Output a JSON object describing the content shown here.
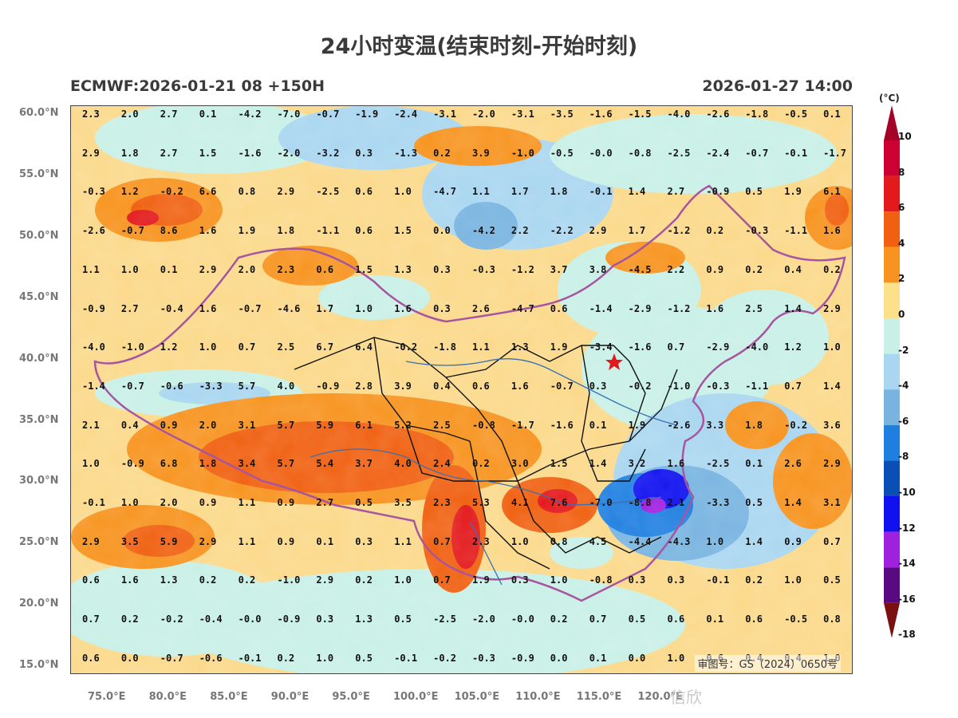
{
  "title": "24小时变温(结束时刻-开始时刻)",
  "subtitle_left": "ECMWF:2026-01-21 08 +150H",
  "subtitle_right": "2026-01-27 14:00",
  "approval_number": "审图号：GS（2024）0650号",
  "watermark": "信欣",
  "lat_labels": [
    "60.0°N",
    "55.0°N",
    "50.0°N",
    "45.0°N",
    "40.0°N",
    "35.0°N",
    "30.0°N",
    "25.0°N",
    "20.0°N",
    "15.0°N"
  ],
  "lon_labels": [
    "75.0°E",
    "80.0°E",
    "85.0°E",
    "90.0°E",
    "95.0°E",
    "100.0°E",
    "105.0°E",
    "110.0°E",
    "115.0°E",
    "120.0°E"
  ],
  "colorbar": {
    "unit": "(°C)",
    "ticks": [
      "10",
      "8",
      "6",
      "4",
      "2",
      "0",
      "-2",
      "-4",
      "-6",
      "-8",
      "-10",
      "-12",
      "-14",
      "-16",
      "-18"
    ],
    "colors": [
      "#a50026",
      "#cc0033",
      "#e31a1c",
      "#f06010",
      "#f7931e",
      "#fde08a",
      "#c8f0e6",
      "#a9d6f0",
      "#78b4e0",
      "#1f7fe0",
      "#0a4fb5",
      "#1010f0",
      "#a020e0",
      "#5a0a80",
      "#7a1010"
    ]
  },
  "grid_values": [
    [
      "2.3",
      "2.0",
      "2.7",
      "0.1",
      "-4.2",
      "-7.0",
      "-0.7",
      "-1.9",
      "-2.4",
      "-3.1",
      "-2.0",
      "-3.1",
      "-3.5",
      "-1.6",
      "-1.5",
      "-4.0",
      "-2.6",
      "-1.8",
      "-0.5",
      "0.1"
    ],
    [
      "2.9",
      "1.8",
      "2.7",
      "1.5",
      "-1.6",
      "-2.0",
      "-3.2",
      "0.3",
      "-1.3",
      "0.2",
      "3.9",
      "-1.0",
      "-0.5",
      "-0.0",
      "-0.8",
      "-2.5",
      "-2.4",
      "-0.7",
      "-0.1",
      "-1.7"
    ],
    [
      "-0.3",
      "1.2",
      "-0.2",
      "6.6",
      "0.8",
      "2.9",
      "-2.5",
      "0.6",
      "1.0",
      "-4.7",
      "1.1",
      "1.7",
      "1.8",
      "-0.1",
      "1.4",
      "2.7",
      "-0.9",
      "0.5",
      "1.9",
      "6.1"
    ],
    [
      "-2.6",
      "-0.7",
      "8.6",
      "1.6",
      "1.9",
      "1.8",
      "-1.1",
      "0.6",
      "1.5",
      "0.0",
      "-4.2",
      "2.2",
      "-2.2",
      "2.9",
      "1.7",
      "-1.2",
      "0.2",
      "-0.3",
      "-1.1",
      "1.6"
    ],
    [
      "1.1",
      "1.0",
      "0.1",
      "2.9",
      "2.0",
      "2.3",
      "0.6",
      "1.5",
      "1.3",
      "0.3",
      "-0.3",
      "-1.2",
      "3.7",
      "3.8",
      "-4.5",
      "2.2",
      "0.9",
      "0.2",
      "0.4",
      "0.2"
    ],
    [
      "-0.9",
      "2.7",
      "-0.4",
      "1.6",
      "-0.7",
      "-4.6",
      "1.7",
      "1.0",
      "1.6",
      "0.3",
      "2.6",
      "-4.7",
      "0.6",
      "-1.4",
      "-2.9",
      "-1.2",
      "1.6",
      "2.5",
      "1.4",
      "2.9"
    ],
    [
      "-4.0",
      "-1.0",
      "1.2",
      "1.0",
      "0.7",
      "2.5",
      "6.7",
      "6.4",
      "-0.2",
      "-1.8",
      "1.1",
      "1.3",
      "1.9",
      "-3.4",
      "-1.6",
      "0.7",
      "-2.9",
      "-4.0",
      "1.2",
      "1.0"
    ],
    [
      "-1.4",
      "-0.7",
      "-0.6",
      "-3.3",
      "5.7",
      "4.0",
      "-0.9",
      "2.8",
      "3.9",
      "0.4",
      "0.6",
      "1.6",
      "-0.7",
      "0.3",
      "-0.2",
      "-1.0",
      "-0.3",
      "-1.1",
      "0.7",
      "1.4"
    ],
    [
      "2.1",
      "0.4",
      "0.9",
      "2.0",
      "3.1",
      "5.7",
      "5.9",
      "6.1",
      "5.2",
      "2.5",
      "-0.8",
      "-1.7",
      "-1.6",
      "0.1",
      "1.9",
      "-2.6",
      "3.3",
      "1.8",
      "-0.2",
      "3.6"
    ],
    [
      "1.0",
      "-0.9",
      "6.8",
      "1.8",
      "3.4",
      "5.7",
      "5.4",
      "3.7",
      "4.0",
      "2.4",
      "0.2",
      "3.0",
      "1.5",
      "1.4",
      "3.2",
      "1.6",
      "-2.5",
      "0.1",
      "2.6",
      "2.9"
    ],
    [
      "-0.1",
      "1.0",
      "2.0",
      "0.9",
      "1.1",
      "0.9",
      "2.7",
      "0.5",
      "3.5",
      "2.3",
      "5.3",
      "4.1",
      "7.6",
      "-7.0",
      "-8.8",
      "2.1",
      "-3.3",
      "0.5",
      "1.4",
      "3.1"
    ],
    [
      "2.9",
      "3.5",
      "5.9",
      "2.9",
      "1.1",
      "0.9",
      "0.1",
      "0.3",
      "1.1",
      "0.7",
      "2.3",
      "1.0",
      "0.8",
      "4.5",
      "-4.4",
      "-4.3",
      "1.0",
      "1.4",
      "0.9",
      "0.7"
    ],
    [
      "0.6",
      "1.6",
      "1.3",
      "0.2",
      "0.2",
      "-1.0",
      "2.9",
      "0.2",
      "1.0",
      "0.7",
      "1.9",
      "0.3",
      "1.0",
      "-0.8",
      "0.3",
      "0.3",
      "-0.1",
      "0.2",
      "1.0",
      "0.5"
    ],
    [
      "0.7",
      "0.2",
      "-0.2",
      "-0.4",
      "-0.0",
      "-0.9",
      "0.3",
      "1.3",
      "0.5",
      "-2.5",
      "-2.0",
      "-0.0",
      "0.2",
      "0.7",
      "0.5",
      "0.6",
      "0.1",
      "0.6",
      "-0.5",
      "0.8"
    ],
    [
      "0.6",
      "0.0",
      "-0.7",
      "-0.6",
      "-0.1",
      "0.2",
      "1.0",
      "0.5",
      "-0.1",
      "-0.2",
      "-0.3",
      "-0.9",
      "0.0",
      "0.1",
      "0.0",
      "1.0",
      "0.6",
      "0.4",
      "0.4",
      "1.0"
    ]
  ]
}
